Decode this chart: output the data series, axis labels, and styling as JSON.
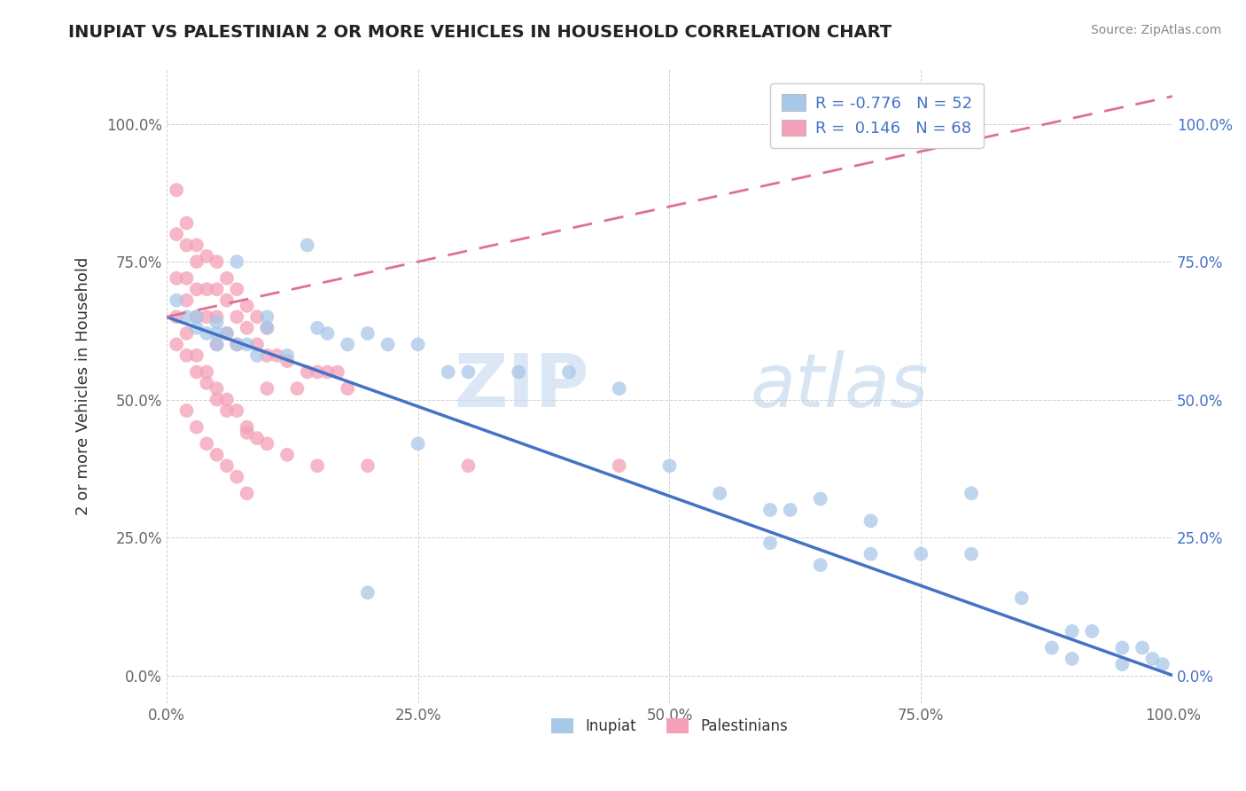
{
  "title": "INUPIAT VS PALESTINIAN 2 OR MORE VEHICLES IN HOUSEHOLD CORRELATION CHART",
  "source": "Source: ZipAtlas.com",
  "ylabel": "2 or more Vehicles in Household",
  "xlim": [
    0,
    100
  ],
  "ylim": [
    -5,
    110
  ],
  "x_tick_labels": [
    "0.0%",
    "25.0%",
    "50.0%",
    "75.0%",
    "100.0%"
  ],
  "x_tick_vals": [
    0,
    25,
    50,
    75,
    100
  ],
  "y_tick_labels": [
    "0.0%",
    "25.0%",
    "50.0%",
    "75.0%",
    "100.0%"
  ],
  "y_tick_vals": [
    0,
    25,
    50,
    75,
    100
  ],
  "inupiat_R": -0.776,
  "inupiat_N": 52,
  "palestinians_R": 0.146,
  "palestinians_N": 68,
  "inupiat_color": "#a8c8e8",
  "palestinians_color": "#f4a0b8",
  "inupiat_line_color": "#4472c4",
  "palestinians_line_color": "#e07090",
  "watermark_zip": "ZIP",
  "watermark_atlas": "atlas",
  "inupiat_x": [
    1,
    2,
    3,
    4,
    5,
    5,
    6,
    7,
    8,
    9,
    10,
    12,
    14,
    16,
    18,
    20,
    22,
    25,
    28,
    30,
    35,
    40,
    45,
    50,
    55,
    60,
    62,
    65,
    70,
    75,
    80,
    85,
    90,
    92,
    95,
    97,
    98,
    99,
    3,
    5,
    7,
    10,
    15,
    20,
    25,
    60,
    65,
    70,
    80,
    88,
    90,
    95
  ],
  "inupiat_y": [
    68,
    65,
    63,
    62,
    60,
    64,
    62,
    60,
    60,
    58,
    63,
    58,
    78,
    62,
    60,
    15,
    60,
    42,
    55,
    55,
    55,
    55,
    52,
    38,
    33,
    30,
    30,
    32,
    28,
    22,
    22,
    14,
    8,
    8,
    5,
    5,
    3,
    2,
    65,
    62,
    75,
    65,
    63,
    62,
    60,
    24,
    20,
    22,
    33,
    5,
    3,
    2
  ],
  "palestinians_x": [
    1,
    1,
    1,
    2,
    2,
    2,
    2,
    3,
    3,
    3,
    3,
    4,
    4,
    4,
    5,
    5,
    5,
    5,
    6,
    6,
    6,
    7,
    7,
    7,
    8,
    8,
    9,
    9,
    10,
    10,
    10,
    11,
    12,
    13,
    14,
    15,
    16,
    17,
    18,
    1,
    2,
    3,
    4,
    5,
    6,
    7,
    8,
    9,
    2,
    3,
    4,
    5,
    6,
    7,
    8,
    1,
    2,
    3,
    4,
    5,
    6,
    8,
    10,
    12,
    15,
    20,
    30,
    45
  ],
  "palestinians_y": [
    88,
    80,
    72,
    82,
    78,
    72,
    68,
    78,
    75,
    70,
    65,
    76,
    70,
    65,
    75,
    70,
    65,
    60,
    72,
    68,
    62,
    70,
    65,
    60,
    67,
    63,
    65,
    60,
    63,
    58,
    52,
    58,
    57,
    52,
    55,
    55,
    55,
    55,
    52,
    65,
    62,
    58,
    55,
    52,
    50,
    48,
    45,
    43,
    48,
    45,
    42,
    40,
    38,
    36,
    33,
    60,
    58,
    55,
    53,
    50,
    48,
    44,
    42,
    40,
    38,
    38,
    38,
    38
  ]
}
